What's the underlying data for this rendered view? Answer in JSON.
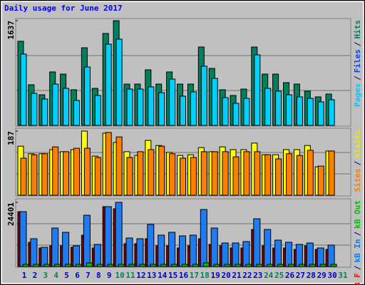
{
  "title": "Daily usage for June 2017",
  "chart_data": [
    {
      "type": "bar",
      "ylim": [
        0,
        1637
      ],
      "yticks": [
        1637
      ],
      "legend_separator": "/",
      "legend": [
        {
          "name": "Pages",
          "color": "#00c8ff"
        },
        {
          "name": "Files",
          "color": "#0040ff"
        },
        {
          "name": "Hits",
          "color": "#008050"
        }
      ],
      "series": [
        {
          "color": "#00805c",
          "values": [
            1315,
            635,
            479,
            836,
            802,
            557,
            1214,
            579,
            1437,
            1637,
            646,
            646,
            869,
            646,
            836,
            646,
            646,
            1225,
            891,
            557,
            468,
            568,
            1225,
            802,
            802,
            668,
            646,
            535,
            446,
            490,
            null
          ]
        },
        {
          "color": "#00d0ff",
          "values": [
            1114,
            501,
            412,
            646,
            579,
            390,
            913,
            468,
            1270,
            1348,
            568,
            568,
            602,
            512,
            724,
            457,
            524,
            925,
            735,
            434,
            345,
            423,
            1103,
            579,
            535,
            479,
            446,
            423,
            368,
            401,
            null
          ]
        }
      ]
    },
    {
      "type": "bar",
      "ylim": [
        0,
        187
      ],
      "yticks": [
        187
      ],
      "legend_separator": "/",
      "legend": [
        {
          "name": "Sites",
          "color": "#ff8000"
        },
        {
          "name": "Visits",
          "color": "#e8e800"
        }
      ],
      "series": [
        {
          "color": "#ffff00",
          "values": [
            143,
            121,
            121,
            133,
            127,
            133,
            187,
            114,
            181,
            154,
            127,
            116,
            160,
            145,
            125,
            116,
            118,
            139,
            127,
            141,
            133,
            133,
            152,
            118,
            118,
            133,
            133,
            145,
            83,
            129,
            null
          ]
        },
        {
          "color": "#ff8000",
          "values": [
            108,
            118,
            121,
            141,
            127,
            137,
            137,
            110,
            183,
            170,
            110,
            127,
            133,
            143,
            121,
            108,
            110,
            127,
            127,
            127,
            112,
            127,
            127,
            118,
            106,
            121,
            116,
            131,
            85,
            129,
            null
          ]
        }
      ]
    },
    {
      "type": "bar",
      "ylim": [
        0,
        24401
      ],
      "yticks": [
        24401
      ],
      "legend_separator": "/",
      "legend": [
        {
          "name": "kB F",
          "color": "#ff0000"
        },
        {
          "name": "kB In",
          "color": "#0080ff"
        },
        {
          "name": "kB Out",
          "color": "#00c000"
        }
      ],
      "categories": [
        "1",
        "2",
        "3",
        "4",
        "5",
        "6",
        "7",
        "8",
        "9",
        "10",
        "11",
        "12",
        "13",
        "14",
        "15",
        "16",
        "17",
        "18",
        "19",
        "20",
        "21",
        "22",
        "23",
        "24",
        "25",
        "26",
        "27",
        "28",
        "29",
        "30",
        "31"
      ],
      "category_colors": [
        "#0000c0",
        "#0000c0",
        "#008060",
        "#008060",
        "#0000c0",
        "#0000c0",
        "#0000c0",
        "#0000c0",
        "#0000c0",
        "#008060",
        "#008060",
        "#0000c0",
        "#0000c0",
        "#0000c0",
        "#0000c0",
        "#0000c0",
        "#008060",
        "#008060",
        "#0000c0",
        "#0000c0",
        "#0000c0",
        "#0000c0",
        "#0000c0",
        "#008060",
        "#008060",
        "#0000c0",
        "#0000c0",
        "#0000c0",
        "#0000c0",
        "#0000c0",
        "#008060"
      ],
      "series": [
        {
          "color": "#800000",
          "values": [
            20867,
            9214,
            7046,
            7859,
            7859,
            7317,
            11924,
            7046,
            22764,
            21951,
            8672,
            8672,
            10569,
            7859,
            7859,
            7046,
            7859,
            10569,
            8401,
            7859,
            7046,
            7046,
            14092,
            7859,
            7046,
            7046,
            6504,
            7859,
            6504,
            6504,
            null
          ]
        },
        {
          "color": "#1e7cf0",
          "values": [
            20867,
            10569,
            7317,
            14634,
            13008,
            7859,
            19512,
            8401,
            22764,
            24401,
            10840,
            10569,
            15989,
            11924,
            13008,
            11653,
            11924,
            21680,
            14634,
            8943,
            8943,
            9485,
            18157,
            14092,
            10027,
            9214,
            8401,
            8943,
            7046,
            8130,
            null
          ]
        },
        {
          "color": "#00c000",
          "values": [
            813,
            813,
            813,
            813,
            813,
            813,
            1355,
            813,
            813,
            813,
            813,
            813,
            813,
            813,
            813,
            813,
            813,
            1355,
            813,
            813,
            813,
            813,
            813,
            813,
            813,
            813,
            813,
            813,
            813,
            813,
            null
          ]
        }
      ]
    }
  ]
}
